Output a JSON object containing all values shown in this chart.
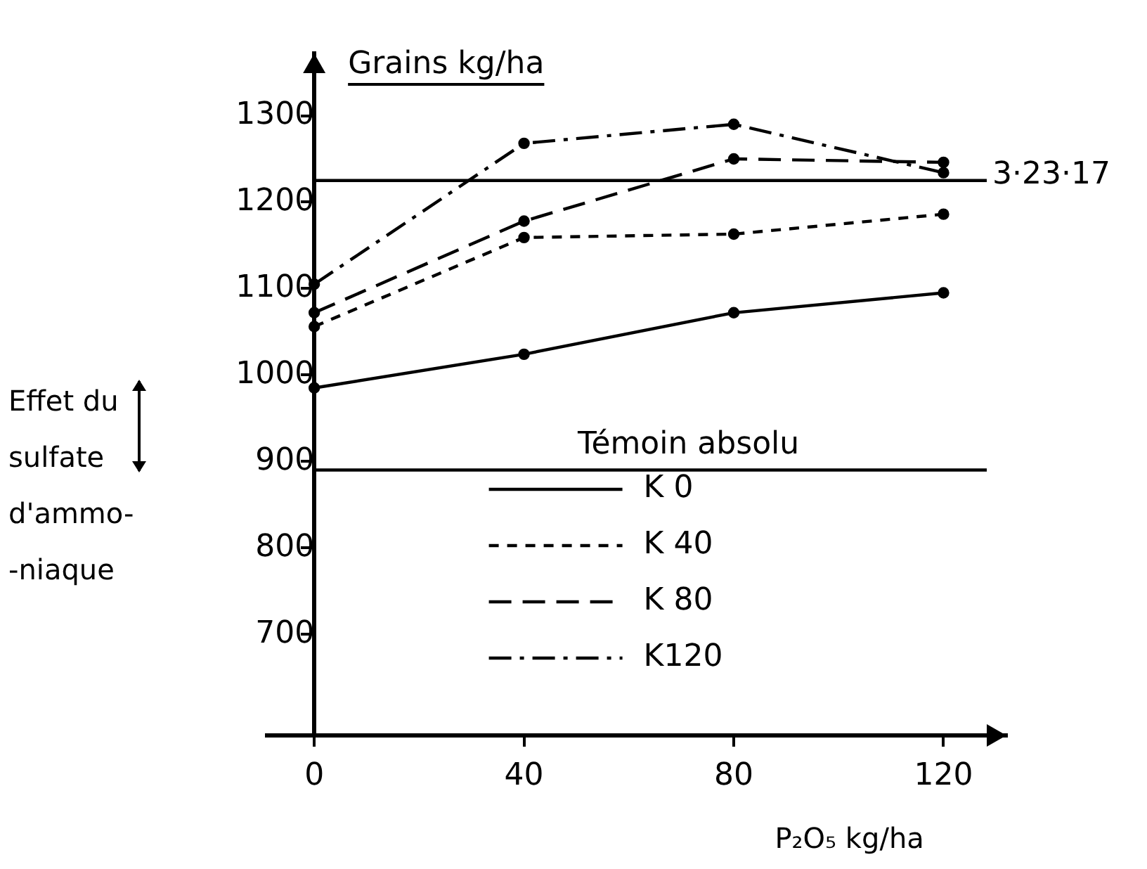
{
  "chart_data": {
    "type": "line",
    "ylabel": "Grains kg/ha",
    "xlabel": "P₂O₅ kg/ha",
    "x": [
      0,
      40,
      80,
      120
    ],
    "series": [
      {
        "name": "K 0",
        "color": "#000000",
        "line_style": "solid",
        "values": [
          985,
          1024,
          1072,
          1095
        ]
      },
      {
        "name": "K 40",
        "color": "#000000",
        "line_style": "dashed",
        "values": [
          1056,
          1159,
          1163,
          1186
        ]
      },
      {
        "name": "K 80",
        "color": "#000000",
        "line_style": "longdash",
        "values": [
          1072,
          1178,
          1250,
          1246
        ]
      },
      {
        "name": "K120",
        "color": "#000000",
        "line_style": "dashdot",
        "values": [
          1105,
          1268,
          1290,
          1234
        ]
      }
    ],
    "xlim": [
      -9,
      132
    ],
    "xticks": [
      0,
      40,
      80,
      120
    ],
    "ylim": [
      583,
      1372
    ],
    "yticks": [
      700,
      800,
      900,
      1000,
      1100,
      1200,
      1300
    ],
    "ref_lines": [
      {
        "axis": "y",
        "value": 1225
      },
      {
        "axis": "y",
        "value": 890,
        "label": "Témoin absolu"
      }
    ],
    "annotations": [
      "Effet du\nsulfate\nd'ammo-\n-niaque",
      "3·23·17"
    ],
    "marker": "circle",
    "grid": false,
    "legend": "bottom"
  }
}
